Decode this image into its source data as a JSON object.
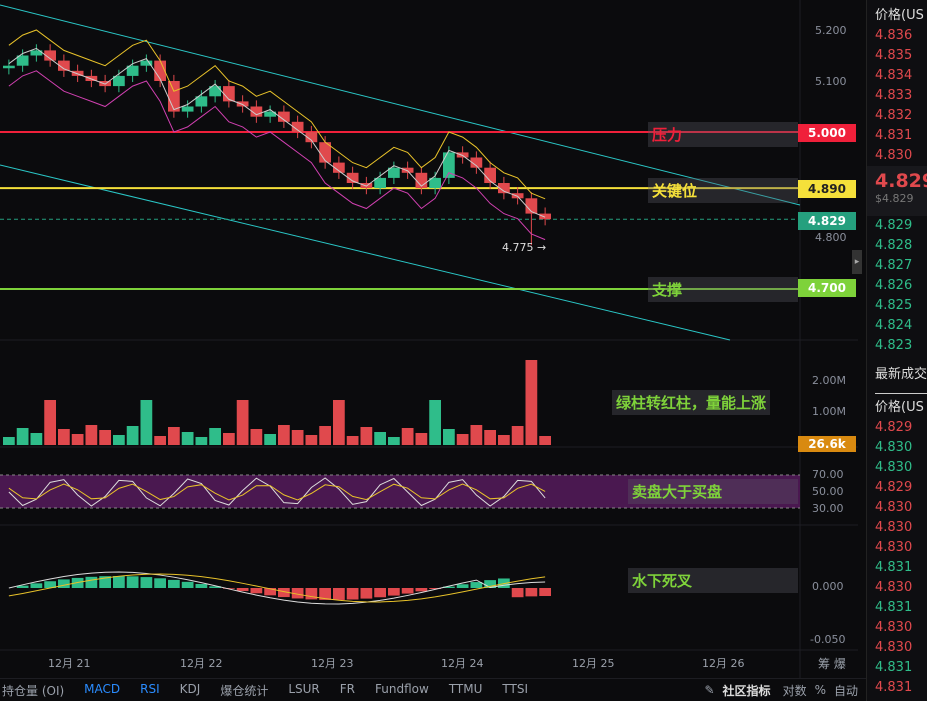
{
  "price_axis": [
    "5.200",
    "5.100",
    "4.800"
  ],
  "levels": {
    "pressure": {
      "label": "压力",
      "value": "5.000",
      "color": "#f0203a"
    },
    "key": {
      "label": "关键位",
      "value": "4.890",
      "color": "#f5e03a"
    },
    "current": {
      "value": "4.829",
      "color": "#25a07e"
    },
    "support": {
      "label": "支撑",
      "value": "4.700",
      "color": "#7ed23a"
    }
  },
  "low_marker": "4.775 →",
  "volume": {
    "axis": [
      "2.00M",
      "1.00M"
    ],
    "current": "26.6k",
    "note": "绿柱转红柱，量能上涨"
  },
  "rsi": {
    "axis": [
      "70.00",
      "50.00",
      "30.00"
    ],
    "note": "卖盘大于买盘"
  },
  "macd": {
    "axis": [
      "0.000",
      "-0.050"
    ],
    "note": "水下死叉"
  },
  "dates": [
    "12月 21",
    "12月 22",
    "12月 23",
    "12月 24",
    "12月 25",
    "12月 26"
  ],
  "date_corner": "筹 爆",
  "closes": [
    5.13,
    5.15,
    5.16,
    5.14,
    5.12,
    5.11,
    5.1,
    5.09,
    5.11,
    5.13,
    5.14,
    5.1,
    5.04,
    5.05,
    5.07,
    5.09,
    5.06,
    5.05,
    5.03,
    5.04,
    5.02,
    5.0,
    4.98,
    4.94,
    4.92,
    4.9,
    4.89,
    4.91,
    4.93,
    4.92,
    4.89,
    4.91,
    4.96,
    4.95,
    4.93,
    4.9,
    4.88,
    4.87,
    4.84,
    4.829
  ],
  "orderbook": {
    "header": "价格(US",
    "asks": [
      "4.836",
      "4.835",
      "4.834",
      "4.833",
      "4.832",
      "4.831",
      "4.830"
    ],
    "last": "4.829",
    "last_usd": "$4.829",
    "bids": [
      "4.829",
      "4.828",
      "4.827",
      "4.826",
      "4.825",
      "4.824",
      "4.823"
    ]
  },
  "trades": {
    "title": "最新成交",
    "header": "价格(US",
    "rows": [
      {
        "p": "4.829",
        "s": "r"
      },
      {
        "p": "4.830",
        "s": "g"
      },
      {
        "p": "4.830",
        "s": "g"
      },
      {
        "p": "4.829",
        "s": "r"
      },
      {
        "p": "4.830",
        "s": "r"
      },
      {
        "p": "4.830",
        "s": "r"
      },
      {
        "p": "4.830",
        "s": "r"
      },
      {
        "p": "4.831",
        "s": "g"
      },
      {
        "p": "4.830",
        "s": "r"
      },
      {
        "p": "4.831",
        "s": "g"
      },
      {
        "p": "4.830",
        "s": "r"
      },
      {
        "p": "4.830",
        "s": "r"
      },
      {
        "p": "4.831",
        "s": "g"
      },
      {
        "p": "4.831",
        "s": "r"
      }
    ]
  },
  "tabs": [
    "持仓量 (OI)",
    "MACD",
    "RSI",
    "KDJ",
    "爆仓统计",
    "LSUR",
    "FR",
    "Fundflow",
    "TTMU",
    "TTSI"
  ],
  "active_tabs": [
    "MACD",
    "RSI"
  ],
  "bottom_right": {
    "community": "社区指标",
    "log": "对数",
    "pct": "%",
    "auto": "自动"
  }
}
